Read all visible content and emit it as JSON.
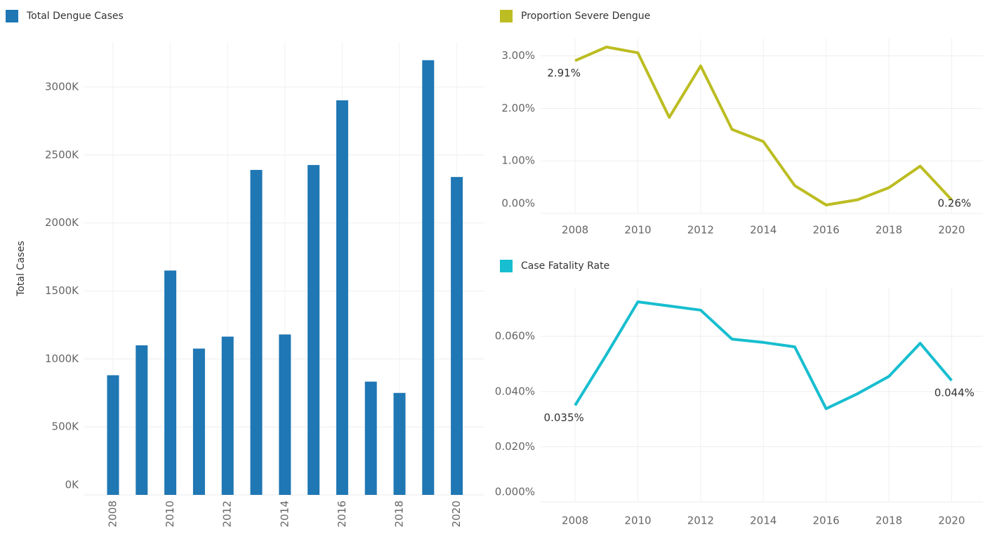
{
  "chart_data": [
    {
      "type": "bar",
      "y_label": "Total Cases",
      "categories": [
        "2008",
        null,
        "2010",
        null,
        "2012",
        null,
        "2014",
        null,
        "2016",
        null,
        "2018",
        null,
        "2020"
      ],
      "series": [
        {
          "name": "Total Dengue Cases",
          "color": "#1f77b4",
          "values": [
            880000,
            1100000,
            1650000,
            1076000,
            1164000,
            2390000,
            1180000,
            2426000,
            2902000,
            833000,
            750000,
            3197000,
            2338000
          ]
        }
      ],
      "ylim": [
        0,
        3330000
      ],
      "yticks": [
        {
          "value": 0,
          "label": "0K"
        },
        {
          "value": 500000,
          "label": "500K"
        },
        {
          "value": 1000000,
          "label": "1000K"
        },
        {
          "value": 1500000,
          "label": "1500K"
        },
        {
          "value": 2000000,
          "label": "2000K"
        },
        {
          "value": 2500000,
          "label": "2500K"
        },
        {
          "value": 3000000,
          "label": "3000K"
        }
      ],
      "grid": true
    },
    {
      "type": "line",
      "x": [
        2008,
        2009,
        2010,
        2011,
        2012,
        2013,
        2014,
        2015,
        2016,
        2017,
        2018,
        2019,
        2020
      ],
      "series": [
        {
          "name": "Proportion Severe Dengue",
          "color": "#bcbd22",
          "values": [
            2.91,
            3.17,
            3.06,
            1.83,
            2.81,
            1.6,
            1.37,
            0.53,
            0.16,
            0.26,
            0.49,
            0.9,
            0.26
          ],
          "value_labels": [
            "2.91%",
            null,
            null,
            null,
            null,
            null,
            null,
            null,
            null,
            null,
            null,
            null,
            "0.26%"
          ]
        }
      ],
      "xlim": [
        2006.9,
        2021
      ],
      "xticks": [
        2008,
        2010,
        2012,
        2014,
        2016,
        2018,
        2020
      ],
      "ylim": [
        0,
        3.33
      ],
      "yticks": [
        {
          "value": 0,
          "label": "0.00%"
        },
        {
          "value": 1,
          "label": "1.00%"
        },
        {
          "value": 2,
          "label": "2.00%"
        },
        {
          "value": 3,
          "label": "3.00%"
        }
      ],
      "grid": true
    },
    {
      "type": "line",
      "x": [
        2008,
        2009,
        2010,
        2011,
        2012,
        2013,
        2014,
        2015,
        2016,
        2017,
        2018,
        2019,
        2020
      ],
      "series": [
        {
          "name": "Case Fatality Rate",
          "color": "#17becf",
          "values": [
            0.035,
            0.0534,
            0.0725,
            0.071,
            0.0695,
            0.059,
            0.0578,
            0.0562,
            0.0338,
            0.0392,
            0.0455,
            0.0575,
            0.044
          ],
          "value_labels": [
            "0.035%",
            null,
            null,
            null,
            null,
            null,
            null,
            null,
            null,
            null,
            null,
            null,
            "0.044%"
          ]
        }
      ],
      "xlim": [
        2006.9,
        2021
      ],
      "xticks": [
        2008,
        2010,
        2012,
        2014,
        2016,
        2018,
        2020
      ],
      "ylim": [
        0,
        0.0776
      ],
      "yticks": [
        {
          "value": 0,
          "label": "0.000%"
        },
        {
          "value": 0.02,
          "label": "0.020%"
        },
        {
          "value": 0.04,
          "label": "0.040%"
        },
        {
          "value": 0.06,
          "label": "0.060%"
        }
      ],
      "grid": true
    }
  ]
}
